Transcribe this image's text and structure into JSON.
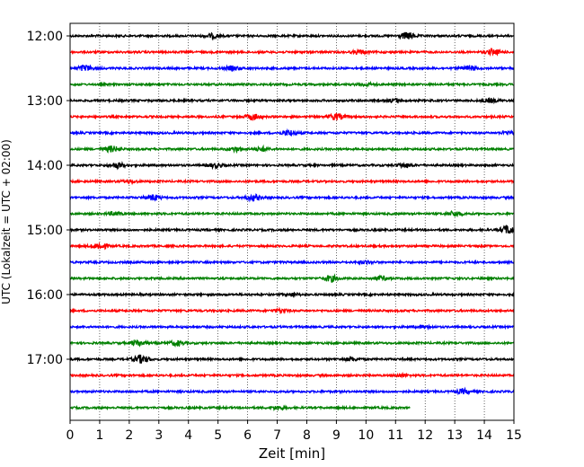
{
  "chart_data": {
    "type": "line",
    "title": "",
    "xlabel": "Zeit  [min]",
    "ylabel": "UTC (Lokalzeit = UTC + 02:00)",
    "xlim": [
      0,
      15
    ],
    "xticks": [
      "0",
      "1",
      "2",
      "3",
      "4",
      "5",
      "6",
      "7",
      "8",
      "9",
      "10",
      "11",
      "12",
      "13",
      "14",
      "15"
    ],
    "yticks": [
      "12:00",
      "13:00",
      "14:00",
      "15:00",
      "16:00",
      "17:00"
    ],
    "grid": "vertical dotted lines at each minute",
    "row_interval_minutes": 15,
    "color_cycle": [
      "#000000",
      "#ff0000",
      "#0000ff",
      "#008000"
    ],
    "rows": [
      {
        "start": "12:00",
        "end_min": 15,
        "events": [
          [
            4.8,
            2.0
          ],
          [
            11.4,
            3.5
          ]
        ]
      },
      {
        "start": "12:15",
        "end_min": 15,
        "events": [
          [
            9.8,
            1.8
          ],
          [
            14.3,
            2.6
          ]
        ]
      },
      {
        "start": "12:30",
        "end_min": 15,
        "events": [
          [
            0.5,
            3.0
          ],
          [
            5.5,
            2.0
          ],
          [
            13.5,
            2.4
          ]
        ]
      },
      {
        "start": "12:45",
        "end_min": 15,
        "events": [
          [
            10.0,
            1.5
          ]
        ]
      },
      {
        "start": "13:00",
        "end_min": 15,
        "events": [
          [
            11.0,
            1.8
          ],
          [
            14.2,
            1.8
          ]
        ]
      },
      {
        "start": "13:15",
        "end_min": 15,
        "events": [
          [
            6.2,
            3.0
          ],
          [
            9.0,
            3.2
          ]
        ]
      },
      {
        "start": "13:30",
        "end_min": 15,
        "events": [
          [
            7.4,
            2.6
          ],
          [
            14.8,
            1.8
          ]
        ]
      },
      {
        "start": "13:45",
        "end_min": 15,
        "events": [
          [
            1.4,
            3.0
          ],
          [
            5.6,
            2.2
          ],
          [
            6.5,
            2.0
          ]
        ]
      },
      {
        "start": "14:00",
        "end_min": 15,
        "events": [
          [
            1.6,
            2.8
          ],
          [
            4.9,
            2.2
          ],
          [
            11.3,
            2.0
          ]
        ]
      },
      {
        "start": "14:15",
        "end_min": 15,
        "events": [
          [
            2.0,
            1.4
          ]
        ]
      },
      {
        "start": "14:30",
        "end_min": 15,
        "events": [
          [
            2.8,
            3.0
          ],
          [
            6.2,
            3.0
          ]
        ]
      },
      {
        "start": "14:45",
        "end_min": 15,
        "events": [
          [
            1.5,
            1.6
          ],
          [
            13.0,
            2.4
          ]
        ]
      },
      {
        "start": "15:00",
        "end_min": 15,
        "events": [
          [
            14.8,
            4.5
          ]
        ]
      },
      {
        "start": "15:15",
        "end_min": 15,
        "events": [
          [
            1.0,
            3.5
          ]
        ]
      },
      {
        "start": "15:30",
        "end_min": 15,
        "events": [
          [
            10.0,
            1.2
          ]
        ]
      },
      {
        "start": "15:45",
        "end_min": 15,
        "events": [
          [
            8.8,
            3.2
          ],
          [
            10.5,
            2.0
          ]
        ]
      },
      {
        "start": "16:00",
        "end_min": 15,
        "events": [
          [
            7.5,
            1.5
          ]
        ]
      },
      {
        "start": "16:15",
        "end_min": 15,
        "events": [
          [
            7.1,
            1.6
          ]
        ]
      },
      {
        "start": "16:30",
        "end_min": 15,
        "events": [
          [
            12.0,
            1.3
          ]
        ]
      },
      {
        "start": "16:45",
        "end_min": 15,
        "events": [
          [
            2.3,
            2.8
          ],
          [
            3.6,
            2.4
          ]
        ]
      },
      {
        "start": "17:00",
        "end_min": 15,
        "events": [
          [
            2.4,
            4.0
          ],
          [
            9.5,
            1.6
          ]
        ]
      },
      {
        "start": "17:15",
        "end_min": 15,
        "events": [
          [
            11.2,
            1.2
          ]
        ]
      },
      {
        "start": "17:30",
        "end_min": 15,
        "events": [
          [
            13.3,
            2.2
          ]
        ]
      },
      {
        "start": "17:45",
        "end_min": 11.5,
        "events": [
          [
            7.0,
            1.6
          ]
        ]
      }
    ]
  }
}
